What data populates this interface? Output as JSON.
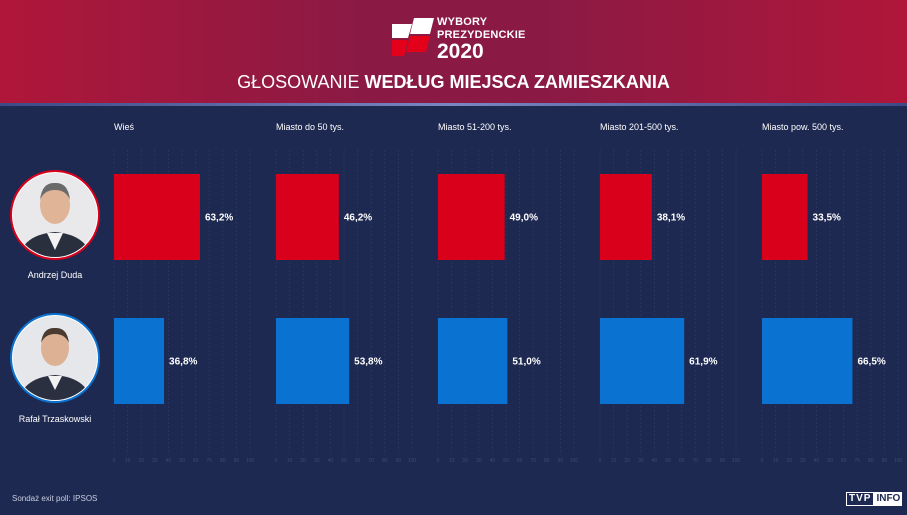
{
  "header": {
    "logo_line1": "WYBORY",
    "logo_line2": "PREZYDENCKIE",
    "logo_year": "2020",
    "title_light": "GŁOSOWANIE ",
    "title_bold": "WEDŁUG MIEJSCA ZAMIESZKANIA"
  },
  "colors": {
    "duda": "#d9001b",
    "trzaskowski": "#0a73d1",
    "background": "#1e2951",
    "header": "#8a1a44"
  },
  "chart_data": {
    "type": "bar",
    "orientation": "horizontal",
    "categories": [
      "Wieś",
      "Miasto do 50 tys.",
      "Miasto 51-200 tys.",
      "Miasto 201-500 tys.",
      "Miasto pow. 500 tys."
    ],
    "series": [
      {
        "name": "Andrzej Duda",
        "values": [
          63.2,
          46.2,
          49.0,
          38.1,
          33.5
        ],
        "labels": [
          "63,2%",
          "46,2%",
          "49,0%",
          "38,1%",
          "33,5%"
        ]
      },
      {
        "name": "Rafał Trzaskowski",
        "values": [
          36.8,
          53.8,
          51.0,
          61.9,
          66.5
        ],
        "labels": [
          "36,8%",
          "53,8%",
          "51,0%",
          "61,9%",
          "66,5%"
        ]
      }
    ],
    "xlim": [
      0,
      100
    ],
    "ticks": [
      "0",
      "10",
      "20",
      "30",
      "40",
      "50",
      "60",
      "70",
      "80",
      "90",
      "100"
    ]
  },
  "footer": {
    "source": "Sondaż exit poll: IPSOS",
    "brand_tvp": "TVP",
    "brand_info": "INFO"
  }
}
